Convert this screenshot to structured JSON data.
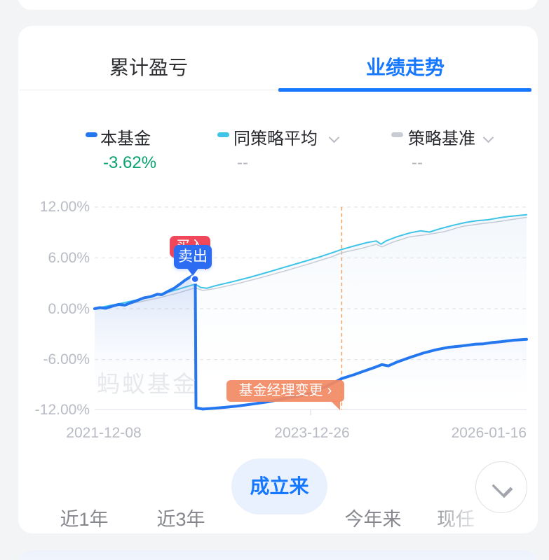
{
  "tabs": {
    "left": "累计盈亏",
    "right": "业绩走势",
    "active": "业绩走势",
    "accent_color": "#1677ff"
  },
  "legend": [
    {
      "label": "本基金",
      "value": "-3.62%",
      "color": "#2577f0",
      "value_color": "#09a36f",
      "has_dropdown": false
    },
    {
      "label": "同策略平均",
      "value": "--",
      "color": "#3ec4e6",
      "value_color": "#b3b6bc",
      "has_dropdown": true
    },
    {
      "label": "策略基准",
      "value": "--",
      "color": "#c9ccd3",
      "value_color": "#b3b6bc",
      "has_dropdown": true
    }
  ],
  "chart_data": {
    "type": "line",
    "title": "",
    "watermark": "蚂蚁基金",
    "y_ticks": [
      "12.00%",
      "6.00%",
      "0.00%",
      "-6.00%",
      "-12.00%"
    ],
    "ylim": [
      -12,
      12
    ],
    "grid": "dashed-horizontal",
    "x_labels": [
      "2021-12-08",
      "2023-12-26",
      "2026-01-16"
    ],
    "series": [
      {
        "name": "本基金",
        "color": "#2577f0",
        "width": 4,
        "fill": true,
        "points": [
          [
            0,
            0
          ],
          [
            0.012,
            0.12
          ],
          [
            0.025,
            0.05
          ],
          [
            0.04,
            0.28
          ],
          [
            0.055,
            0.5
          ],
          [
            0.07,
            0.42
          ],
          [
            0.085,
            0.72
          ],
          [
            0.1,
            1.0
          ],
          [
            0.115,
            1.3
          ],
          [
            0.13,
            1.42
          ],
          [
            0.145,
            1.7
          ],
          [
            0.155,
            1.65
          ],
          [
            0.17,
            2.05
          ],
          [
            0.185,
            2.45
          ],
          [
            0.2,
            3.0
          ],
          [
            0.21,
            3.4
          ],
          [
            0.22,
            3.7
          ],
          [
            0.228,
            3.92
          ],
          [
            0.233,
            3.8
          ],
          [
            0.2345,
            -11.7
          ],
          [
            0.25,
            -11.85
          ],
          [
            0.27,
            -11.78
          ],
          [
            0.3,
            -11.65
          ],
          [
            0.33,
            -11.5
          ],
          [
            0.36,
            -11.3
          ],
          [
            0.4,
            -11.0
          ],
          [
            0.44,
            -10.6
          ],
          [
            0.47,
            -10.35
          ],
          [
            0.5,
            -10.0
          ],
          [
            0.53,
            -9.3
          ],
          [
            0.555,
            -8.7
          ],
          [
            0.572,
            -8.25
          ],
          [
            0.6,
            -7.8
          ],
          [
            0.625,
            -7.35
          ],
          [
            0.65,
            -6.9
          ],
          [
            0.665,
            -6.6
          ],
          [
            0.68,
            -6.75
          ],
          [
            0.7,
            -6.3
          ],
          [
            0.73,
            -5.75
          ],
          [
            0.76,
            -5.25
          ],
          [
            0.79,
            -4.85
          ],
          [
            0.82,
            -4.55
          ],
          [
            0.85,
            -4.4
          ],
          [
            0.88,
            -4.2
          ],
          [
            0.9,
            -4.15
          ],
          [
            0.92,
            -4.0
          ],
          [
            0.94,
            -3.9
          ],
          [
            0.97,
            -3.72
          ],
          [
            1,
            -3.62
          ]
        ]
      },
      {
        "name": "同策略平均",
        "color": "#3ec4e6",
        "width": 2,
        "fill": true,
        "points": [
          [
            0,
            0
          ],
          [
            0.03,
            0.32
          ],
          [
            0.06,
            0.62
          ],
          [
            0.09,
            0.95
          ],
          [
            0.12,
            1.3
          ],
          [
            0.15,
            1.68
          ],
          [
            0.18,
            2.1
          ],
          [
            0.21,
            2.55
          ],
          [
            0.233,
            2.9
          ],
          [
            0.246,
            2.5
          ],
          [
            0.26,
            2.42
          ],
          [
            0.28,
            2.72
          ],
          [
            0.32,
            3.2
          ],
          [
            0.36,
            3.72
          ],
          [
            0.4,
            4.3
          ],
          [
            0.44,
            4.9
          ],
          [
            0.48,
            5.5
          ],
          [
            0.52,
            6.1
          ],
          [
            0.55,
            6.6
          ],
          [
            0.572,
            7.0
          ],
          [
            0.6,
            7.4
          ],
          [
            0.63,
            7.8
          ],
          [
            0.652,
            8.0
          ],
          [
            0.663,
            7.62
          ],
          [
            0.675,
            8.02
          ],
          [
            0.7,
            8.5
          ],
          [
            0.73,
            8.95
          ],
          [
            0.755,
            9.2
          ],
          [
            0.775,
            9.05
          ],
          [
            0.8,
            9.45
          ],
          [
            0.83,
            9.85
          ],
          [
            0.86,
            10.2
          ],
          [
            0.885,
            10.4
          ],
          [
            0.91,
            10.5
          ],
          [
            0.935,
            10.72
          ],
          [
            0.96,
            10.9
          ],
          [
            1,
            11.1
          ]
        ]
      },
      {
        "name": "策略基准",
        "color": "#c9ccd3",
        "width": 1.5,
        "fill": false,
        "points": [
          [
            0,
            0
          ],
          [
            0.05,
            0.32
          ],
          [
            0.1,
            0.75
          ],
          [
            0.15,
            1.3
          ],
          [
            0.2,
            1.95
          ],
          [
            0.233,
            2.48
          ],
          [
            0.25,
            2.15
          ],
          [
            0.28,
            2.38
          ],
          [
            0.33,
            2.95
          ],
          [
            0.38,
            3.6
          ],
          [
            0.44,
            4.45
          ],
          [
            0.5,
            5.35
          ],
          [
            0.55,
            6.15
          ],
          [
            0.572,
            6.6
          ],
          [
            0.62,
            7.15
          ],
          [
            0.652,
            7.6
          ],
          [
            0.665,
            7.3
          ],
          [
            0.69,
            7.85
          ],
          [
            0.73,
            8.5
          ],
          [
            0.77,
            8.75
          ],
          [
            0.81,
            9.1
          ],
          [
            0.85,
            9.7
          ],
          [
            0.89,
            10.0
          ],
          [
            0.93,
            10.25
          ],
          [
            0.97,
            10.55
          ],
          [
            1,
            10.78
          ]
        ]
      }
    ],
    "events": {
      "buy": {
        "label": "买入"
      },
      "sell": {
        "label": "卖出",
        "x": 0.2324,
        "y": 3.5
      },
      "manager_change": {
        "label": "基金经理变更",
        "arrow": "›",
        "x": 0.572,
        "line_color": "#eda264"
      }
    }
  },
  "ranges": {
    "items": [
      "近1年",
      "近3年",
      "成立来",
      "今年来",
      "现任"
    ],
    "active": "成立来"
  }
}
